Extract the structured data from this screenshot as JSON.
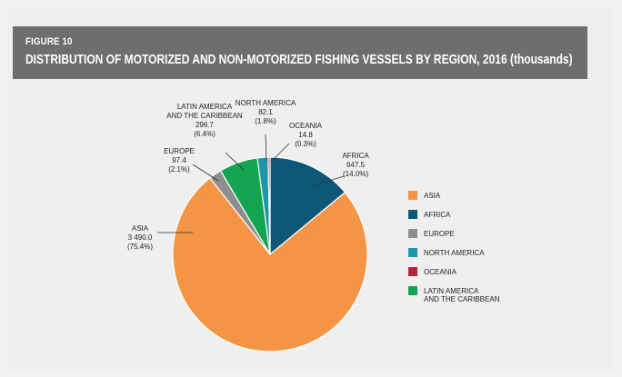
{
  "figure": {
    "label": "FIGURE 10",
    "title": "DISTRIBUTION OF MOTORIZED AND NON-MOTORIZED FISHING VESSELS BY REGION, 2016 (thousands)"
  },
  "chart_data": {
    "type": "pie",
    "title": "DISTRIBUTION OF MOTORIZED AND NON-MOTORIZED FISHING VESSELS BY REGION, 2016 (thousands)",
    "legend_position": "right",
    "slices": [
      {
        "name": "ASIA",
        "value": 3490.0,
        "value_text": "3 490.0",
        "percent_text": "(75.4%)",
        "color": "#f39545",
        "label_lines": [
          "ASIA",
          "3 490.0",
          "(75.4%)"
        ]
      },
      {
        "name": "AFRICA",
        "value": 647.5,
        "value_text": "647.5",
        "percent_text": "(14.0%)",
        "color": "#0e5676",
        "label_lines": [
          "AFRICA",
          "647.5",
          "(14.0%)"
        ]
      },
      {
        "name": "EUROPE",
        "value": 97.4,
        "value_text": "97.4",
        "percent_text": "(2.1%)",
        "color": "#8e8e8e",
        "label_lines": [
          "EUROPE",
          "97.4",
          "(2.1%)"
        ]
      },
      {
        "name": "NORTH AMERICA",
        "value": 82.1,
        "value_text": "82.1",
        "percent_text": "(1.8%)",
        "color": "#1b97a8",
        "label_lines": [
          "NORTH AMERICA",
          "82.1",
          "(1.8%)"
        ]
      },
      {
        "name": "OCEANIA",
        "value": 14.8,
        "value_text": "14.8",
        "percent_text": "(0.3%)",
        "color": "#b2263a",
        "label_lines": [
          "OCEANIA",
          "14.8",
          "(0.3%)"
        ]
      },
      {
        "name": "LATIN AMERICA AND THE CARIBBEAN",
        "value": 296.7,
        "value_text": "296.7",
        "percent_text": "(6.4%)",
        "color": "#13a550",
        "label_lines": [
          "LATIN AMERICA",
          "AND THE CARIBBEAN",
          "296.7",
          "(6.4%)"
        ]
      }
    ],
    "legend": [
      {
        "lines": [
          "ASIA"
        ],
        "color": "#f39545"
      },
      {
        "lines": [
          "AFRICA"
        ],
        "color": "#0e5676"
      },
      {
        "lines": [
          "EUROPE"
        ],
        "color": "#8e8e8e"
      },
      {
        "lines": [
          "NORTH AMERICA"
        ],
        "color": "#1b97a8"
      },
      {
        "lines": [
          "OCEANIA"
        ],
        "color": "#b2263a"
      },
      {
        "lines": [
          "LATIN AMERICA",
          "AND THE CARIBBEAN"
        ],
        "color": "#13a550"
      }
    ]
  }
}
